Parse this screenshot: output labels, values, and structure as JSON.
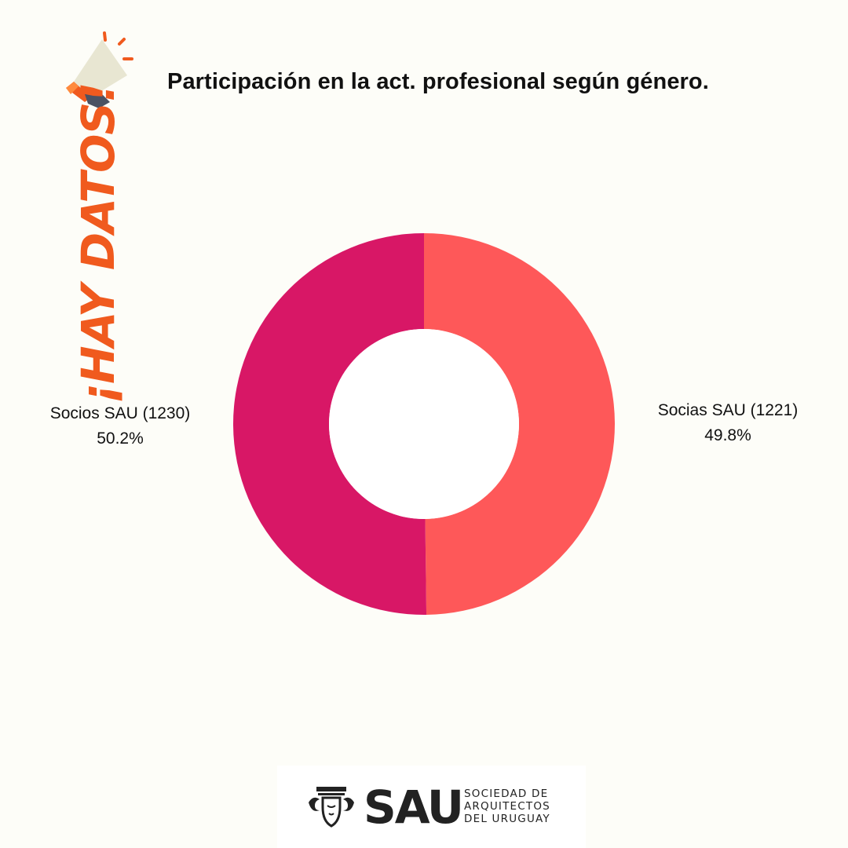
{
  "header": {
    "title": "Participación en la act. profesional según género.",
    "badge_text": "¡HAY DATOS!",
    "badge_icon": "megaphone-icon"
  },
  "chart_data": {
    "type": "pie",
    "donut": true,
    "title": "Participación en la act. profesional según género.",
    "slices": [
      {
        "label": "Socias SAU (1221)",
        "count": 1221,
        "percent_label": "49.8%",
        "value": 49.8,
        "color": "#fe5859"
      },
      {
        "label": "Socios SAU (1230)",
        "count": 1230,
        "percent_label": "50.2%",
        "value": 50.2,
        "color": "#d81766"
      }
    ]
  },
  "footer": {
    "logo_word": "SAU",
    "logo_lines": [
      "SOCIEDAD DE",
      "ARQUITECTOS",
      "DEL URUGUAY"
    ]
  },
  "colors": {
    "background": "#fdfdf8",
    "accent_orange": "#f05a1e",
    "text": "#111111"
  }
}
